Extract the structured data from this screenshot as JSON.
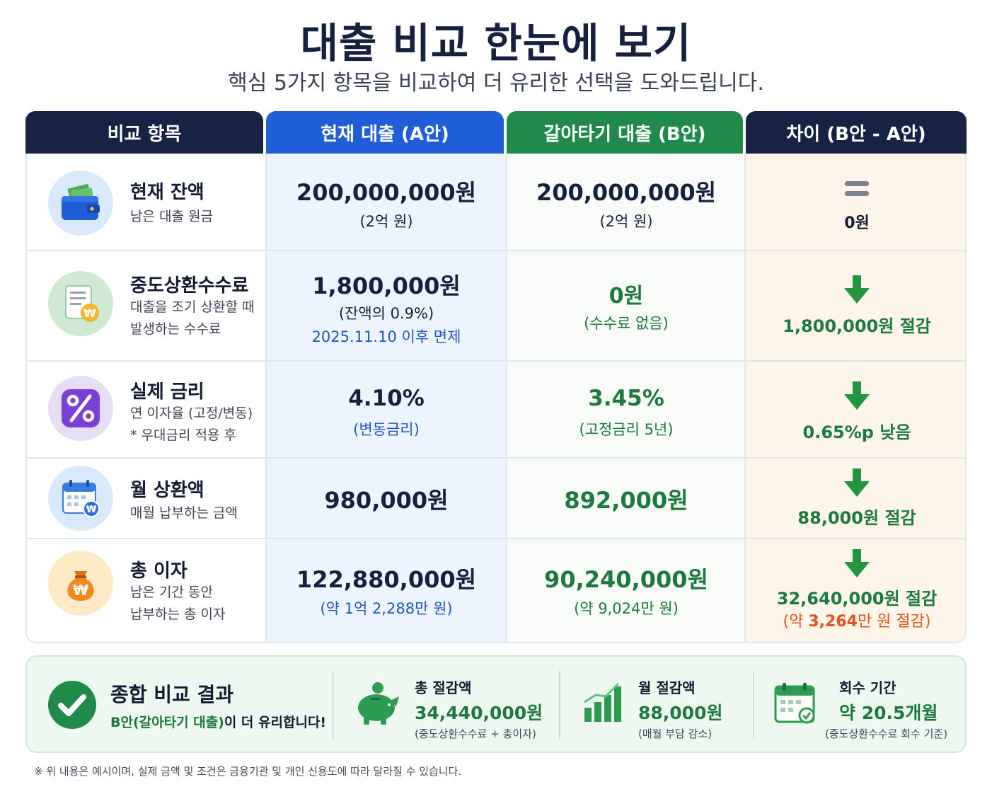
{
  "page": {
    "title": "대출 비교 한눈에 보기",
    "subtitle": "핵심 5가지 항목을 비교하여 더 유리한 선택을 도와드립니다."
  },
  "headers": [
    "비교 항목",
    "현재 대출 (A안)",
    "갈아타기 대출 (B안)",
    "차이 (B안 - A안)"
  ],
  "rows": [
    {
      "icon": "wallet-icon",
      "title": "현재 잔액",
      "desc": [
        "남은 대출 원금"
      ],
      "a_main": "200,000,000원",
      "a_sub": "(2억 원)",
      "b_main": "200,000,000원",
      "b_sub": "(2억 원)",
      "diff_icon": "equals-icon",
      "diff": "0원"
    },
    {
      "icon": "document-won-icon",
      "title": "중도상환수수료",
      "desc": [
        "대출을 조기 상환할 때",
        "발생하는 수수료"
      ],
      "a_main": "1,800,000원",
      "a_sub": "(잔액의 0.9%)",
      "a_note": "2025.11.10 이후 면제",
      "b_main": "0원",
      "b_sub": "(수수료 없음)",
      "diff_icon": "arrow-down-icon",
      "diff": "1,800,000원 절감"
    },
    {
      "icon": "percent-icon",
      "title": "실제 금리",
      "desc": [
        "연 이자율 (고정/변동)",
        "* 우대금리 적용 후"
      ],
      "a_main": "4.10%",
      "a_sub": "(변동금리)",
      "b_main": "3.45%",
      "b_sub": "(고정금리 5년)",
      "diff_icon": "arrow-down-icon",
      "diff": "0.65%p 낮음"
    },
    {
      "icon": "calendar-won-icon",
      "title": "월 상환액",
      "desc": [
        "매월 납부하는 금액"
      ],
      "a_main": "980,000원",
      "b_main": "892,000원",
      "diff_icon": "arrow-down-icon",
      "diff": "88,000원 절감"
    },
    {
      "icon": "money-bag-icon",
      "title": "총 이자",
      "desc": [
        "남은 기간 동안",
        "납부하는 총 이자"
      ],
      "a_main": "122,880,000원",
      "a_sub": "(약 1억 2,288만 원)",
      "b_main": "90,240,000원",
      "b_sub": "(약 9,024만 원)",
      "diff_icon": "arrow-down-icon",
      "diff": "32,640,000원 절감",
      "diff_sub_prefix": "(약 ",
      "diff_sub_value": "3,264",
      "diff_sub_suffix": "만 원 절감)"
    }
  ],
  "summary": {
    "icon": "check-circle-icon",
    "title": "종합 비교 결과",
    "line_highlight": "B안(갈아타기 대출)",
    "line_rest": "이 더 유리합니다!",
    "stats": [
      {
        "icon": "piggy-bank-icon",
        "label": "총 절감액",
        "value": "34,440,000원",
        "note": "(중도상환수수료 + 총이자)"
      },
      {
        "icon": "bar-chart-icon",
        "label": "월 절감액",
        "value": "88,000원",
        "note": "(매월 부담 감소)"
      },
      {
        "icon": "calendar-check-icon",
        "label": "회수 기간",
        "value": "약 20.5개월",
        "note": "(중도상환수수료 회수 기준)"
      }
    ]
  },
  "footnote": "※ 위 내용은 예시이며, 실제 금액 및 조건은 금융기관 및 개인 신용도에 따라 달라질 수 있습니다.",
  "colors": {
    "navy": "#172345",
    "blue": "#1f5ed6",
    "green": "#1f8a4a",
    "orange": "#e8511b"
  }
}
